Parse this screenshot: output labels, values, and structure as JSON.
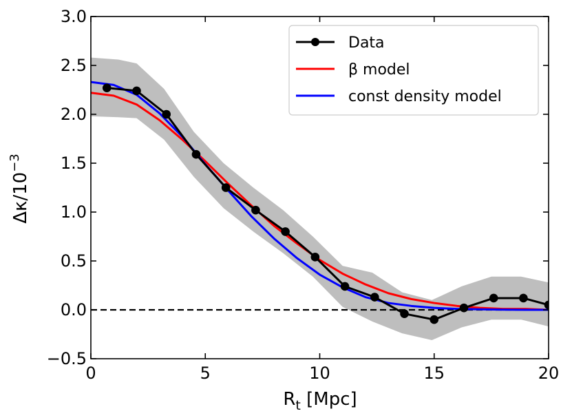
{
  "chart_data": {
    "type": "line",
    "xlabel_main": "R",
    "xlabel_sub": "t",
    "xlabel_rest": " [Mpc]",
    "ylabel_main": "Δκ/10",
    "ylabel_sup": "−3",
    "xlim": [
      0,
      20
    ],
    "ylim": [
      -0.5,
      3.0
    ],
    "xticks": [
      0,
      5,
      10,
      15,
      20
    ],
    "xtick_labels": [
      "0",
      "5",
      "10",
      "15",
      "20"
    ],
    "yticks": [
      -0.5,
      0.0,
      0.5,
      1.0,
      1.5,
      2.0,
      2.5,
      3.0
    ],
    "ytick_labels": [
      "−0.5",
      "0.0",
      "0.5",
      "1.0",
      "1.5",
      "2.0",
      "2.5",
      "3.0"
    ],
    "reference_line": {
      "y": 0.0,
      "style": "dashed",
      "color": "#000000"
    },
    "uncertainty_band": {
      "color": "#bebebe",
      "x": [
        0,
        1.2,
        2.0,
        3.2,
        4.5,
        5.8,
        7.1,
        8.4,
        9.7,
        11.0,
        12.3,
        13.6,
        14.9,
        16.2,
        17.5,
        18.8,
        20.0
      ],
      "upper": [
        2.58,
        2.56,
        2.52,
        2.26,
        1.82,
        1.5,
        1.25,
        1.02,
        0.75,
        0.45,
        0.38,
        0.18,
        0.1,
        0.24,
        0.34,
        0.34,
        0.28
      ],
      "lower": [
        1.98,
        1.97,
        1.96,
        1.74,
        1.36,
        1.04,
        0.8,
        0.58,
        0.34,
        0.03,
        -0.12,
        -0.24,
        -0.31,
        -0.18,
        -0.1,
        -0.1,
        -0.17
      ]
    },
    "series": [
      {
        "name": "Data",
        "color": "#000000",
        "marker": "circle",
        "x": [
          0.7,
          2.0,
          3.3,
          4.6,
          5.9,
          7.2,
          8.5,
          9.8,
          11.1,
          12.4,
          13.7,
          15.0,
          16.3,
          17.6,
          18.9,
          20.0
        ],
        "y": [
          2.27,
          2.24,
          2.0,
          1.59,
          1.25,
          1.02,
          0.8,
          0.54,
          0.24,
          0.13,
          -0.04,
          -0.1,
          0.02,
          0.12,
          0.12,
          0.05
        ]
      },
      {
        "name": "β model",
        "color": "#ff0000",
        "x": [
          0,
          1,
          2,
          3,
          4,
          5,
          6,
          7,
          8,
          9,
          10,
          11,
          12,
          13,
          14,
          15,
          16,
          17,
          18,
          19,
          20
        ],
        "y": [
          2.22,
          2.19,
          2.1,
          1.94,
          1.74,
          1.52,
          1.29,
          1.07,
          0.86,
          0.68,
          0.51,
          0.37,
          0.26,
          0.17,
          0.11,
          0.07,
          0.04,
          0.02,
          0.01,
          0.01,
          0.0
        ]
      },
      {
        "name": "const density model",
        "color": "#0000ff",
        "x": [
          0,
          1,
          2,
          3,
          4,
          5,
          6,
          7,
          8,
          9,
          10,
          11,
          12,
          13,
          14,
          15,
          16,
          17,
          18,
          19,
          20
        ],
        "y": [
          2.33,
          2.3,
          2.2,
          2.01,
          1.77,
          1.49,
          1.22,
          0.96,
          0.73,
          0.53,
          0.36,
          0.23,
          0.13,
          0.07,
          0.04,
          0.02,
          0.01,
          0.005,
          0.002,
          0.0,
          0.0
        ]
      }
    ],
    "legend": {
      "position": "top-right",
      "entries": [
        "Data",
        "β model",
        "const density model"
      ]
    }
  }
}
